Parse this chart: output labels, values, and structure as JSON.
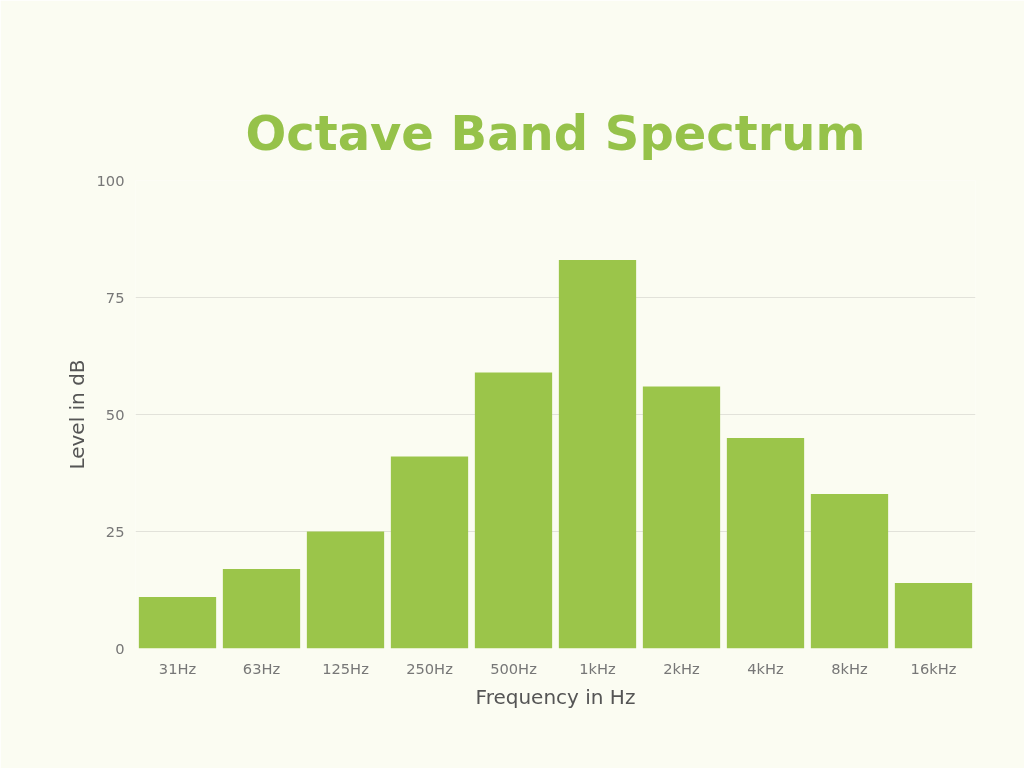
{
  "chart_data": {
    "type": "bar",
    "title": "Octave Band Spectrum",
    "xlabel": "Frequency in Hz",
    "ylabel": "Level in dB",
    "categories": [
      "31Hz",
      "63Hz",
      "125Hz",
      "250Hz",
      "500Hz",
      "1kHz",
      "2kHz",
      "4kHz",
      "8kHz",
      "16kHz"
    ],
    "values": [
      11,
      17,
      25,
      41,
      59,
      83,
      56,
      45,
      33,
      14
    ],
    "color": "#9bc54a",
    "ylim": [
      0,
      100
    ],
    "yticks": [
      0,
      25,
      50,
      75,
      100
    ],
    "grid": "y"
  }
}
